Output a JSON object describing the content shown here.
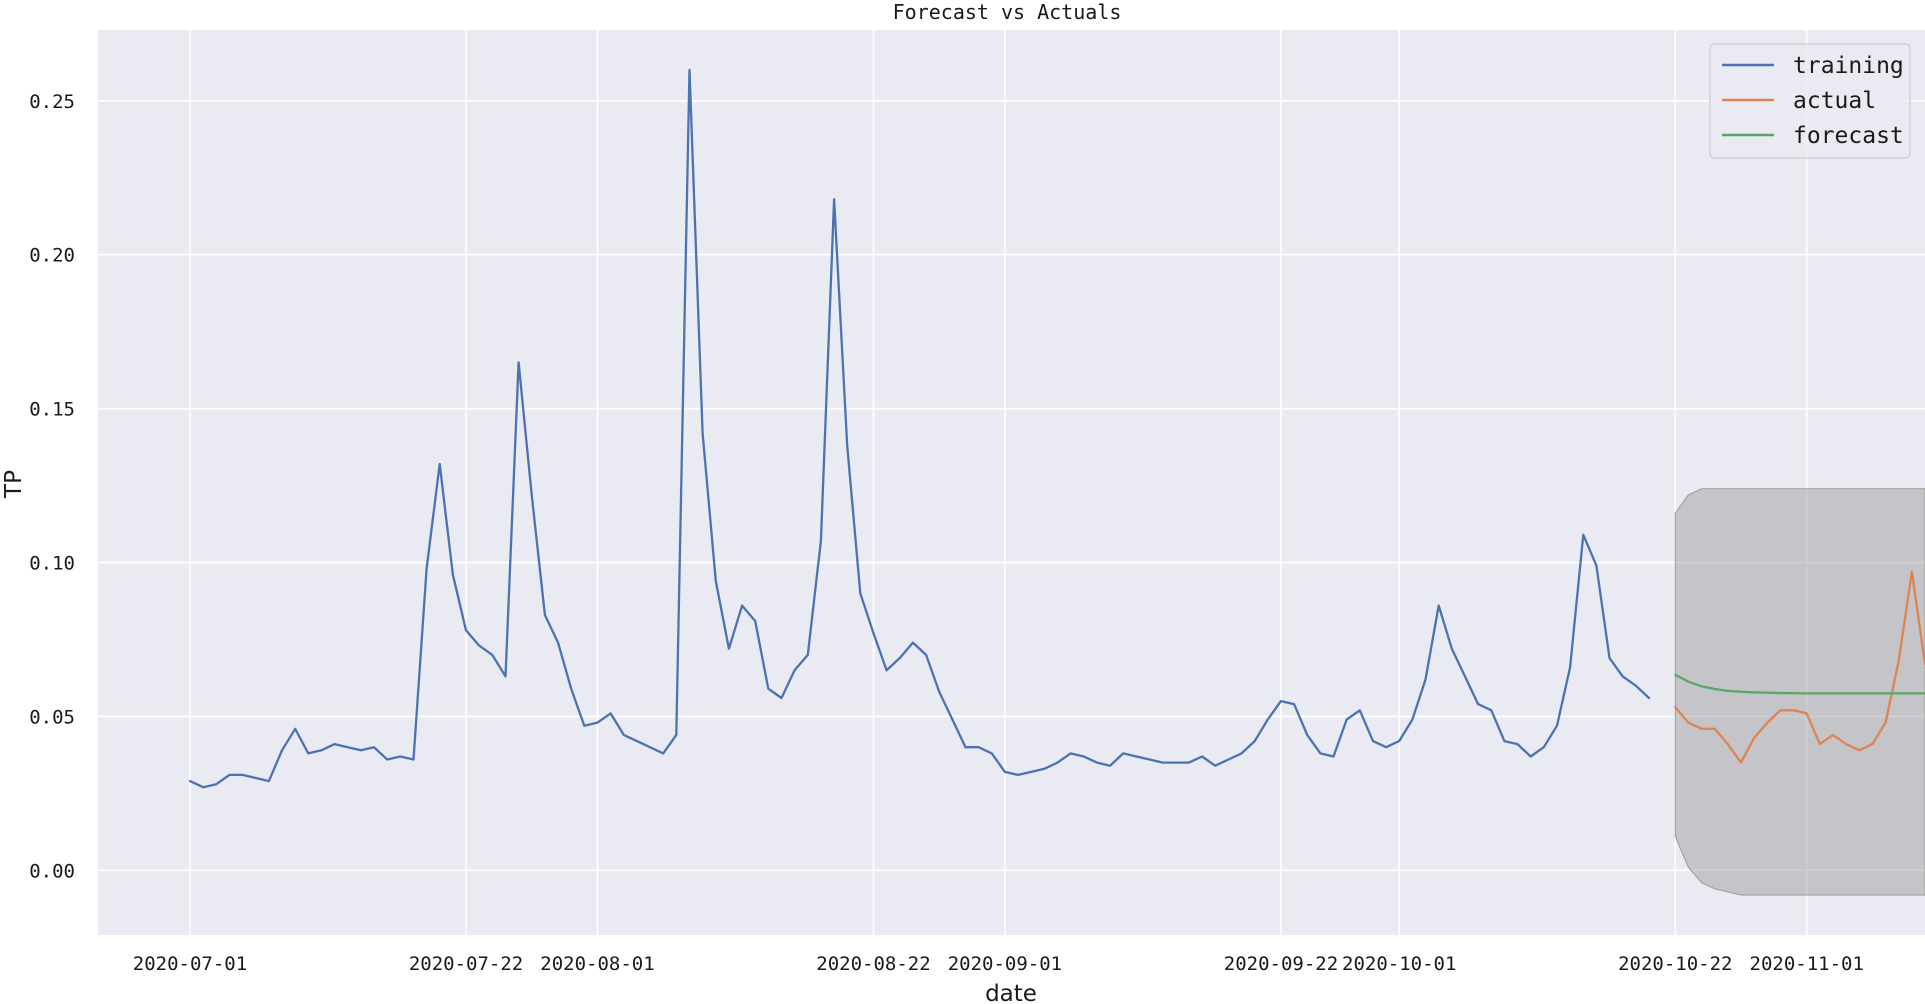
{
  "chart_data": {
    "type": "line",
    "title": "Forecast vs Actuals",
    "xlabel": "date",
    "ylabel": "TP",
    "x_tick_labels": [
      "2020-07-01",
      "2020-07-22",
      "2020-08-01",
      "2020-08-22",
      "2020-09-01",
      "2020-09-22",
      "2020-10-01",
      "2020-10-22",
      "2020-11-01"
    ],
    "y_tick_labels": [
      "0.00",
      "0.05",
      "0.10",
      "0.15",
      "0.20",
      "0.25"
    ],
    "ylim": [
      -0.021,
      0.273
    ],
    "xlim": [
      "2020-06-24",
      "2020-11-10"
    ],
    "grid": true,
    "legend_position": "top-right",
    "x_start": "2020-07-01",
    "series": [
      {
        "name": "training",
        "color": "#4c72b0",
        "start": "2020-07-01",
        "values": [
          0.029,
          0.027,
          0.028,
          0.031,
          0.031,
          0.03,
          0.029,
          0.039,
          0.046,
          0.038,
          0.039,
          0.041,
          0.04,
          0.039,
          0.04,
          0.036,
          0.037,
          0.036,
          0.098,
          0.132,
          0.096,
          0.078,
          0.073,
          0.07,
          0.063,
          0.165,
          0.122,
          0.083,
          0.074,
          0.059,
          0.047,
          0.048,
          0.051,
          0.044,
          0.042,
          0.04,
          0.038,
          0.044,
          0.26,
          0.142,
          0.094,
          0.072,
          0.086,
          0.081,
          0.059,
          0.056,
          0.065,
          0.07,
          0.107,
          0.218,
          0.138,
          0.09,
          0.077,
          0.065,
          0.069,
          0.074,
          0.07,
          0.058,
          0.049,
          0.04,
          0.04,
          0.038,
          0.032,
          0.031,
          0.032,
          0.033,
          0.035,
          0.038,
          0.037,
          0.035,
          0.034,
          0.038,
          0.037,
          0.036,
          0.035,
          0.035,
          0.035,
          0.037,
          0.034,
          0.036,
          0.038,
          0.042,
          0.049,
          0.055,
          0.054,
          0.044,
          0.038,
          0.037,
          0.049,
          0.052,
          0.042,
          0.04,
          0.042,
          0.049,
          0.062,
          0.086,
          0.072,
          0.063,
          0.054,
          0.052,
          0.042,
          0.041,
          0.037,
          0.04,
          0.047,
          0.066,
          0.109,
          0.099,
          0.069,
          0.063,
          0.06,
          0.056
        ]
      },
      {
        "name": "actual",
        "color": "#dd8452",
        "start": "2020-10-22",
        "values": [
          0.053,
          0.048,
          0.046,
          0.046,
          0.041,
          0.035,
          0.043,
          0.048,
          0.052,
          0.052,
          0.051,
          0.041,
          0.044,
          0.041,
          0.039,
          0.041,
          0.048,
          0.068,
          0.097,
          0.067
        ]
      },
      {
        "name": "forecast",
        "color": "#55a868",
        "start": "2020-10-22",
        "values": [
          0.0635,
          0.0613,
          0.0598,
          0.0589,
          0.0583,
          0.058,
          0.0578,
          0.0577,
          0.0576,
          0.0576,
          0.0575,
          0.0575,
          0.0575,
          0.0575,
          0.0575,
          0.0575,
          0.0575,
          0.0575,
          0.0575,
          0.0575
        ]
      }
    ],
    "confidence_band": {
      "color": "#a0a0a0",
      "start": "2020-10-22",
      "upper": [
        0.116,
        0.122,
        0.124,
        0.124,
        0.124,
        0.124,
        0.124,
        0.124,
        0.124,
        0.124,
        0.124,
        0.124,
        0.124,
        0.124,
        0.124,
        0.124,
        0.124,
        0.124,
        0.124,
        0.124
      ],
      "lower": [
        0.011,
        0.001,
        -0.004,
        -0.006,
        -0.007,
        -0.008,
        -0.008,
        -0.008,
        -0.008,
        -0.008,
        -0.008,
        -0.008,
        -0.008,
        -0.008,
        -0.008,
        -0.008,
        -0.008,
        -0.008,
        -0.008,
        -0.008
      ]
    }
  }
}
